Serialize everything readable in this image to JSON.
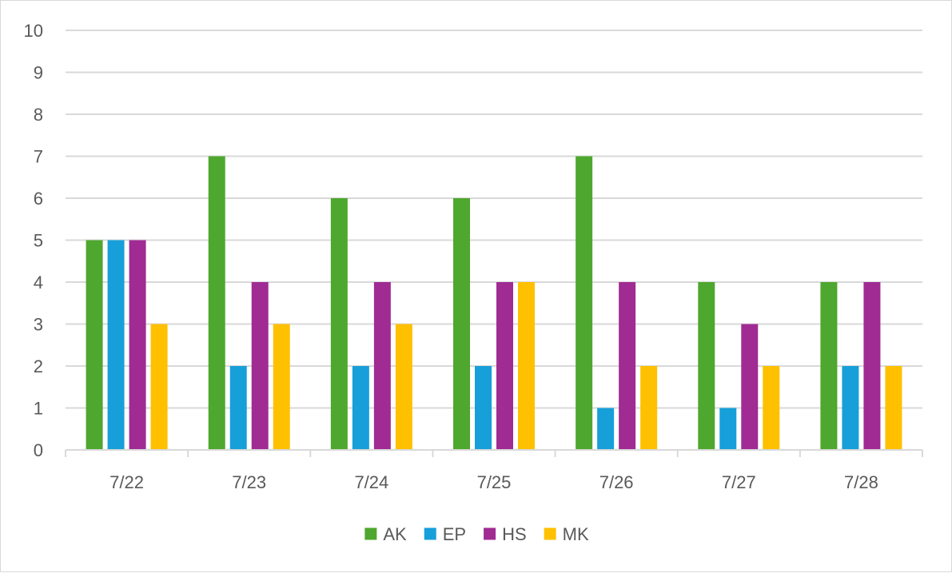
{
  "chart_data": {
    "type": "bar",
    "title": "",
    "xlabel": "",
    "ylabel": "",
    "categories": [
      "7/22",
      "7/23",
      "7/24",
      "7/25",
      "7/26",
      "7/27",
      "7/28"
    ],
    "ylim": [
      0,
      10
    ],
    "yticks": [
      "0",
      "1",
      "2",
      "3",
      "4",
      "5",
      "6",
      "7",
      "8",
      "9",
      "10"
    ],
    "grid": true,
    "legend_position": "bottom",
    "series": [
      {
        "name": "AK",
        "color": "#4ea72e",
        "values": [
          5,
          7,
          6,
          6,
          7,
          4,
          4
        ]
      },
      {
        "name": "EP",
        "color": "#179fd9",
        "values": [
          5,
          2,
          2,
          2,
          1,
          1,
          2
        ]
      },
      {
        "name": "HS",
        "color": "#a02b93",
        "values": [
          5,
          4,
          4,
          4,
          4,
          3,
          4
        ]
      },
      {
        "name": "MK",
        "color": "#ffc000",
        "values": [
          3,
          3,
          3,
          4,
          2,
          2,
          2
        ]
      }
    ]
  }
}
